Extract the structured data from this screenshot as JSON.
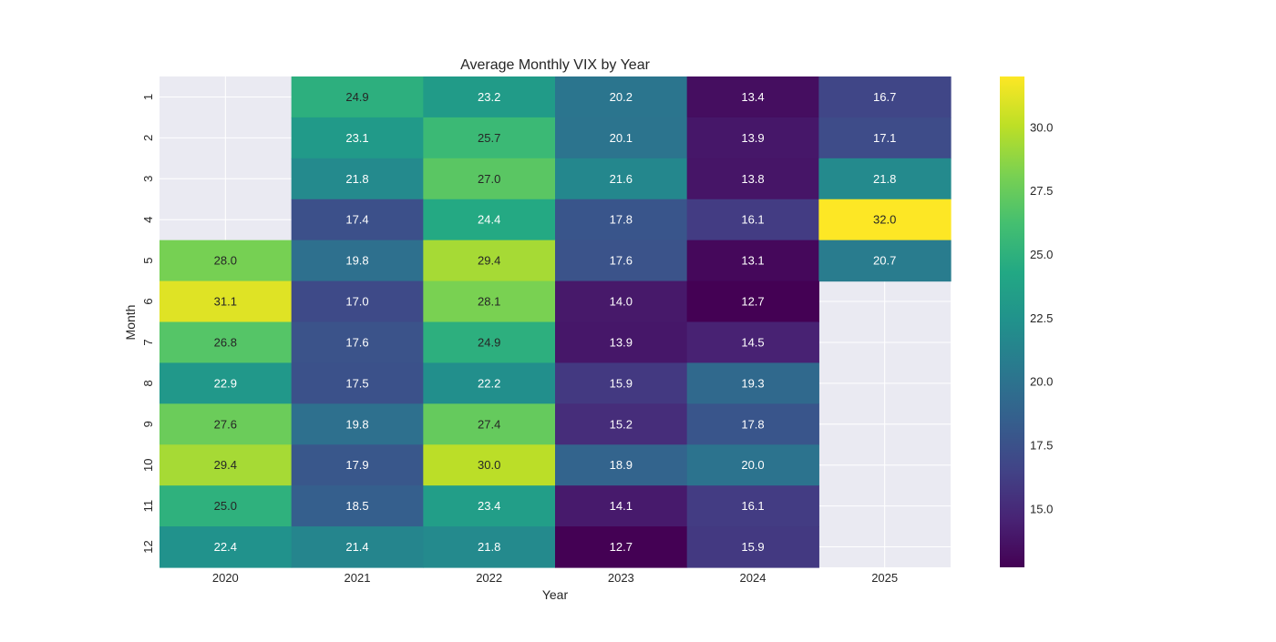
{
  "chart_data": {
    "type": "heatmap",
    "title": "Average Monthly VIX by Year",
    "xlabel": "Year",
    "ylabel": "Month",
    "x_categories": [
      "2020",
      "2021",
      "2022",
      "2023",
      "2024",
      "2025"
    ],
    "y_categories": [
      "1",
      "2",
      "3",
      "4",
      "5",
      "6",
      "7",
      "8",
      "9",
      "10",
      "11",
      "12"
    ],
    "values": [
      [
        null,
        24.9,
        23.2,
        20.2,
        13.4,
        16.7
      ],
      [
        null,
        23.1,
        25.7,
        20.1,
        13.9,
        17.1
      ],
      [
        null,
        21.8,
        27.0,
        21.6,
        13.8,
        21.8
      ],
      [
        null,
        17.4,
        24.4,
        17.8,
        16.1,
        32.0
      ],
      [
        28.0,
        19.8,
        29.4,
        17.6,
        13.1,
        20.7
      ],
      [
        31.1,
        17.0,
        28.1,
        14.0,
        12.7,
        null
      ],
      [
        26.8,
        17.6,
        24.9,
        13.9,
        14.5,
        null
      ],
      [
        22.9,
        17.5,
        22.2,
        15.9,
        19.3,
        null
      ],
      [
        27.6,
        19.8,
        27.4,
        15.2,
        17.8,
        null
      ],
      [
        29.4,
        17.9,
        30.0,
        18.9,
        20.0,
        null
      ],
      [
        25.0,
        18.5,
        23.4,
        14.1,
        16.1,
        null
      ],
      [
        22.4,
        21.4,
        21.8,
        12.7,
        15.9,
        null
      ]
    ],
    "colormap": "viridis",
    "vmin": 12.7,
    "vmax": 32.0,
    "colorbar_ticks": [
      "15.0",
      "17.5",
      "20.0",
      "22.5",
      "25.0",
      "27.5",
      "30.0"
    ],
    "missing_color": "#eaeaf2",
    "grid": true
  }
}
